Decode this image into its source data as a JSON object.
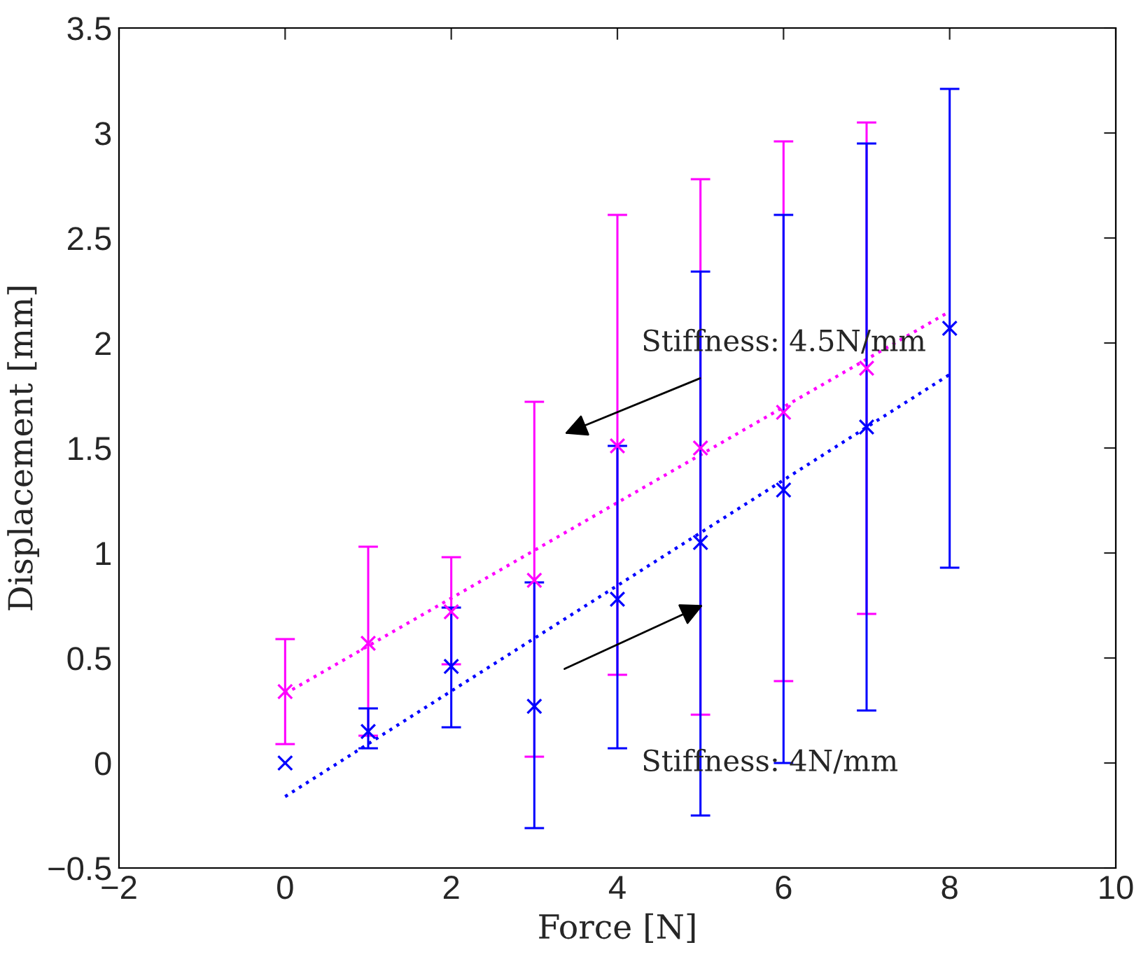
{
  "chart_data": {
    "type": "scatter",
    "xlabel": "Force [N]",
    "ylabel": "Displacement [mm]",
    "xlim": [
      -2,
      10
    ],
    "ylim": [
      -0.5,
      3.5
    ],
    "xticks": [
      {
        "value": -2,
        "label": "−2"
      },
      0,
      2,
      4,
      6,
      8,
      10
    ],
    "yticks": [
      {
        "value": -0.5,
        "label": "−0.5"
      },
      0,
      0.5,
      1,
      1.5,
      2,
      2.5,
      3,
      3.5
    ],
    "grid": false,
    "legend": false,
    "series": [
      {
        "type": "line",
        "color": "#ff00ff",
        "line_style": "dotted",
        "marker": "none",
        "x": [
          0,
          8
        ],
        "values": [
          0.33,
          2.15
        ]
      },
      {
        "type": "line",
        "color": "#0000ff",
        "line_style": "dotted",
        "marker": "none",
        "x": [
          0,
          8
        ],
        "values": [
          -0.16,
          1.85
        ]
      },
      {
        "color": "#ff00ff",
        "marker": "cross",
        "x": [
          0,
          1,
          2,
          3,
          4,
          5,
          6,
          7
        ],
        "values": [
          0.34,
          0.57,
          0.72,
          0.87,
          1.51,
          1.5,
          1.67,
          1.88
        ],
        "errors": [
          [
            0.09,
            0.59
          ],
          [
            0.13,
            1.03
          ],
          [
            0.47,
            0.98
          ],
          [
            0.03,
            1.72
          ],
          [
            0.42,
            2.61
          ],
          [
            0.23,
            2.78
          ],
          [
            0.39,
            2.96
          ],
          [
            0.71,
            3.05
          ]
        ]
      },
      {
        "color": "#0000ff",
        "marker": "cross",
        "x": [
          0,
          1,
          2,
          3,
          4,
          5,
          6,
          7,
          8
        ],
        "values": [
          0.0,
          0.15,
          0.46,
          0.27,
          0.78,
          1.05,
          1.3,
          1.6,
          2.07
        ],
        "errors": [
          null,
          [
            0.07,
            0.26
          ],
          [
            0.17,
            0.74
          ],
          [
            -0.31,
            0.86
          ],
          [
            0.07,
            1.51
          ],
          [
            -0.25,
            2.34
          ],
          [
            0.0,
            2.61
          ],
          [
            0.25,
            2.95
          ],
          [
            0.93,
            3.21
          ]
        ]
      }
    ],
    "annotations": [
      "Stiffness: 4.5N/mm",
      "Stiffness: 4N/mm"
    ]
  }
}
